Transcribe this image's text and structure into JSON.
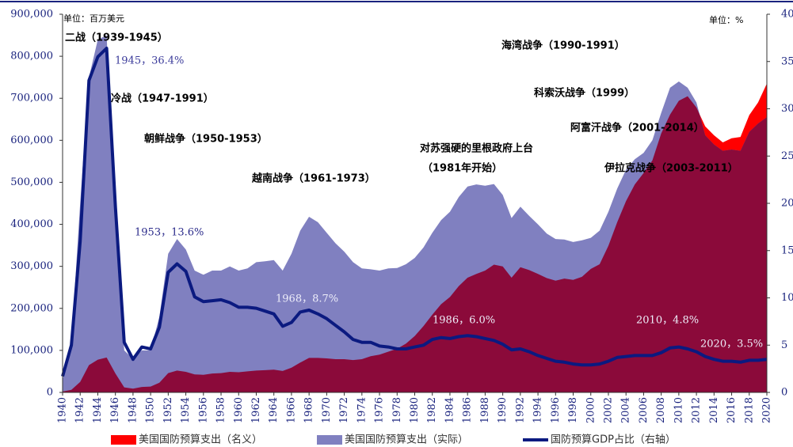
{
  "chart_data": {
    "type": "area",
    "y_unit_label": "单位：百万美元",
    "y2_unit_label": "单位：%",
    "x": [
      1940,
      1941,
      1942,
      1943,
      1944,
      1945,
      1946,
      1947,
      1948,
      1949,
      1950,
      1951,
      1952,
      1953,
      1954,
      1955,
      1956,
      1957,
      1958,
      1959,
      1960,
      1961,
      1962,
      1963,
      1964,
      1965,
      1966,
      1967,
      1968,
      1969,
      1970,
      1971,
      1972,
      1973,
      1974,
      1975,
      1976,
      1977,
      1978,
      1979,
      1980,
      1981,
      1982,
      1983,
      1984,
      1985,
      1986,
      1987,
      1988,
      1989,
      1990,
      1991,
      1992,
      1993,
      1994,
      1995,
      1996,
      1997,
      1998,
      1999,
      2000,
      2001,
      2002,
      2003,
      2004,
      2005,
      2006,
      2007,
      2008,
      2009,
      2010,
      2011,
      2012,
      2013,
      2014,
      2015,
      2016,
      2017,
      2018,
      2019,
      2020
    ],
    "xlim": [
      1940,
      2020
    ],
    "xticks": [
      1940,
      1942,
      1944,
      1946,
      1948,
      1950,
      1952,
      1954,
      1956,
      1958,
      1960,
      1962,
      1964,
      1966,
      1968,
      1970,
      1972,
      1974,
      1976,
      1978,
      1980,
      1982,
      1984,
      1986,
      1988,
      1990,
      1992,
      1994,
      1996,
      1998,
      2000,
      2002,
      2004,
      2006,
      2008,
      2010,
      2012,
      2014,
      2016,
      2018,
      2020
    ],
    "ylim": [
      0,
      900000
    ],
    "yticks": [
      0,
      {
        "value": 100000,
        "label": "100,000"
      },
      {
        "value": 200000,
        "label": "200,000"
      },
      {
        "value": 300000,
        "label": "300,000"
      },
      {
        "value": 400000,
        "label": "400,000"
      },
      {
        "value": 500000,
        "label": "500,000"
      },
      {
        "value": 600000,
        "label": "600,000"
      },
      {
        "value": 700000,
        "label": "700,000"
      },
      {
        "value": 800000,
        "label": "800,000"
      },
      {
        "value": 900000,
        "label": "900,000"
      }
    ],
    "y2lim": [
      0,
      40
    ],
    "y2ticks": [
      0,
      5,
      10,
      15,
      20,
      25,
      30,
      35,
      40
    ],
    "legend": "bottom",
    "overlap_color": "#8b0a3a",
    "series": [
      {
        "name": "美国国防预算支出（名义）",
        "color": "#ff0000",
        "type": "area",
        "values": [
          2000,
          6000,
          25000,
          65000,
          78000,
          83000,
          45000,
          12000,
          9000,
          13000,
          14000,
          23000,
          46000,
          52000,
          49000,
          43000,
          42000,
          45000,
          46000,
          49000,
          48000,
          50000,
          52000,
          53000,
          54000,
          51000,
          59000,
          71000,
          82000,
          82000,
          81000,
          79000,
          79000,
          77000,
          79000,
          86000,
          90000,
          97000,
          104000,
          116000,
          134000,
          158000,
          185000,
          210000,
          227000,
          253000,
          273000,
          282000,
          290000,
          304000,
          300000,
          273000,
          298000,
          291000,
          282000,
          272000,
          266000,
          271000,
          268000,
          275000,
          294000,
          305000,
          349000,
          405000,
          455000,
          495000,
          522000,
          552000,
          616000,
          661000,
          694000,
          705000,
          678000,
          633000,
          612000,
          595000,
          605000,
          608000,
          660000,
          690000,
          735000
        ]
      },
      {
        "name": "美国国防预算支出（实际）",
        "color": "#8080c0",
        "type": "area",
        "values": [
          30000,
          120000,
          450000,
          750000,
          840000,
          850000,
          400000,
          100000,
          80000,
          100000,
          100000,
          180000,
          330000,
          365000,
          340000,
          290000,
          280000,
          290000,
          290000,
          300000,
          290000,
          295000,
          310000,
          312000,
          315000,
          290000,
          330000,
          385000,
          418000,
          405000,
          380000,
          355000,
          335000,
          310000,
          295000,
          293000,
          290000,
          295000,
          296000,
          305000,
          320000,
          345000,
          380000,
          410000,
          430000,
          465000,
          490000,
          495000,
          492000,
          496000,
          470000,
          415000,
          442000,
          420000,
          400000,
          378000,
          365000,
          364000,
          358000,
          362000,
          368000,
          385000,
          430000,
          485000,
          530000,
          555000,
          570000,
          600000,
          665000,
          725000,
          740000,
          725000,
          690000,
          612000,
          590000,
          575000,
          578000,
          575000,
          620000,
          640000,
          655000
        ]
      },
      {
        "name": "国防预算GDP占比（右轴）",
        "color": "#0b1a80",
        "type": "line",
        "axis": "y2",
        "values": [
          1.7,
          5.0,
          16,
          33,
          35.5,
          36.4,
          19.6,
          5.3,
          3.5,
          4.8,
          4.6,
          6.9,
          12.7,
          13.6,
          12.8,
          10.1,
          9.6,
          9.7,
          9.8,
          9.5,
          9.0,
          9.0,
          8.9,
          8.6,
          8.3,
          7.0,
          7.4,
          8.5,
          8.7,
          8.3,
          7.8,
          7.1,
          6.4,
          5.6,
          5.3,
          5.3,
          4.9,
          4.8,
          4.6,
          4.6,
          4.8,
          5.0,
          5.6,
          5.8,
          5.7,
          5.9,
          6.0,
          5.9,
          5.7,
          5.5,
          5.1,
          4.5,
          4.6,
          4.3,
          3.9,
          3.6,
          3.3,
          3.2,
          3.0,
          2.9,
          2.9,
          3.0,
          3.3,
          3.7,
          3.8,
          3.9,
          3.9,
          3.9,
          4.2,
          4.7,
          4.8,
          4.6,
          4.3,
          3.8,
          3.5,
          3.3,
          3.3,
          3.2,
          3.4,
          3.4,
          3.5
        ]
      }
    ],
    "annotations": [
      {
        "text": "二战（1939-1945）"
      },
      {
        "text": "1945，36.4%"
      },
      {
        "text": "冷战（1947-1991）"
      },
      {
        "text": "朝鲜战争（1950-1953）"
      },
      {
        "text": "越南战争（1961-1973）"
      },
      {
        "text": "1953，13.6%"
      },
      {
        "text": "1968，8.7%"
      },
      {
        "text": "对苏强硬的里根政府上台"
      },
      {
        "text": "（1981年开始）"
      },
      {
        "text": "1986，6.0%"
      },
      {
        "text": "海湾战争（1990-1991）"
      },
      {
        "text": "科索沃战争（1999）"
      },
      {
        "text": "阿富汗战争（2001-2014）"
      },
      {
        "text": "伊拉克战争（2003-2011）"
      },
      {
        "text": "2010，4.8%"
      },
      {
        "text": "2020，3.5%"
      }
    ]
  }
}
